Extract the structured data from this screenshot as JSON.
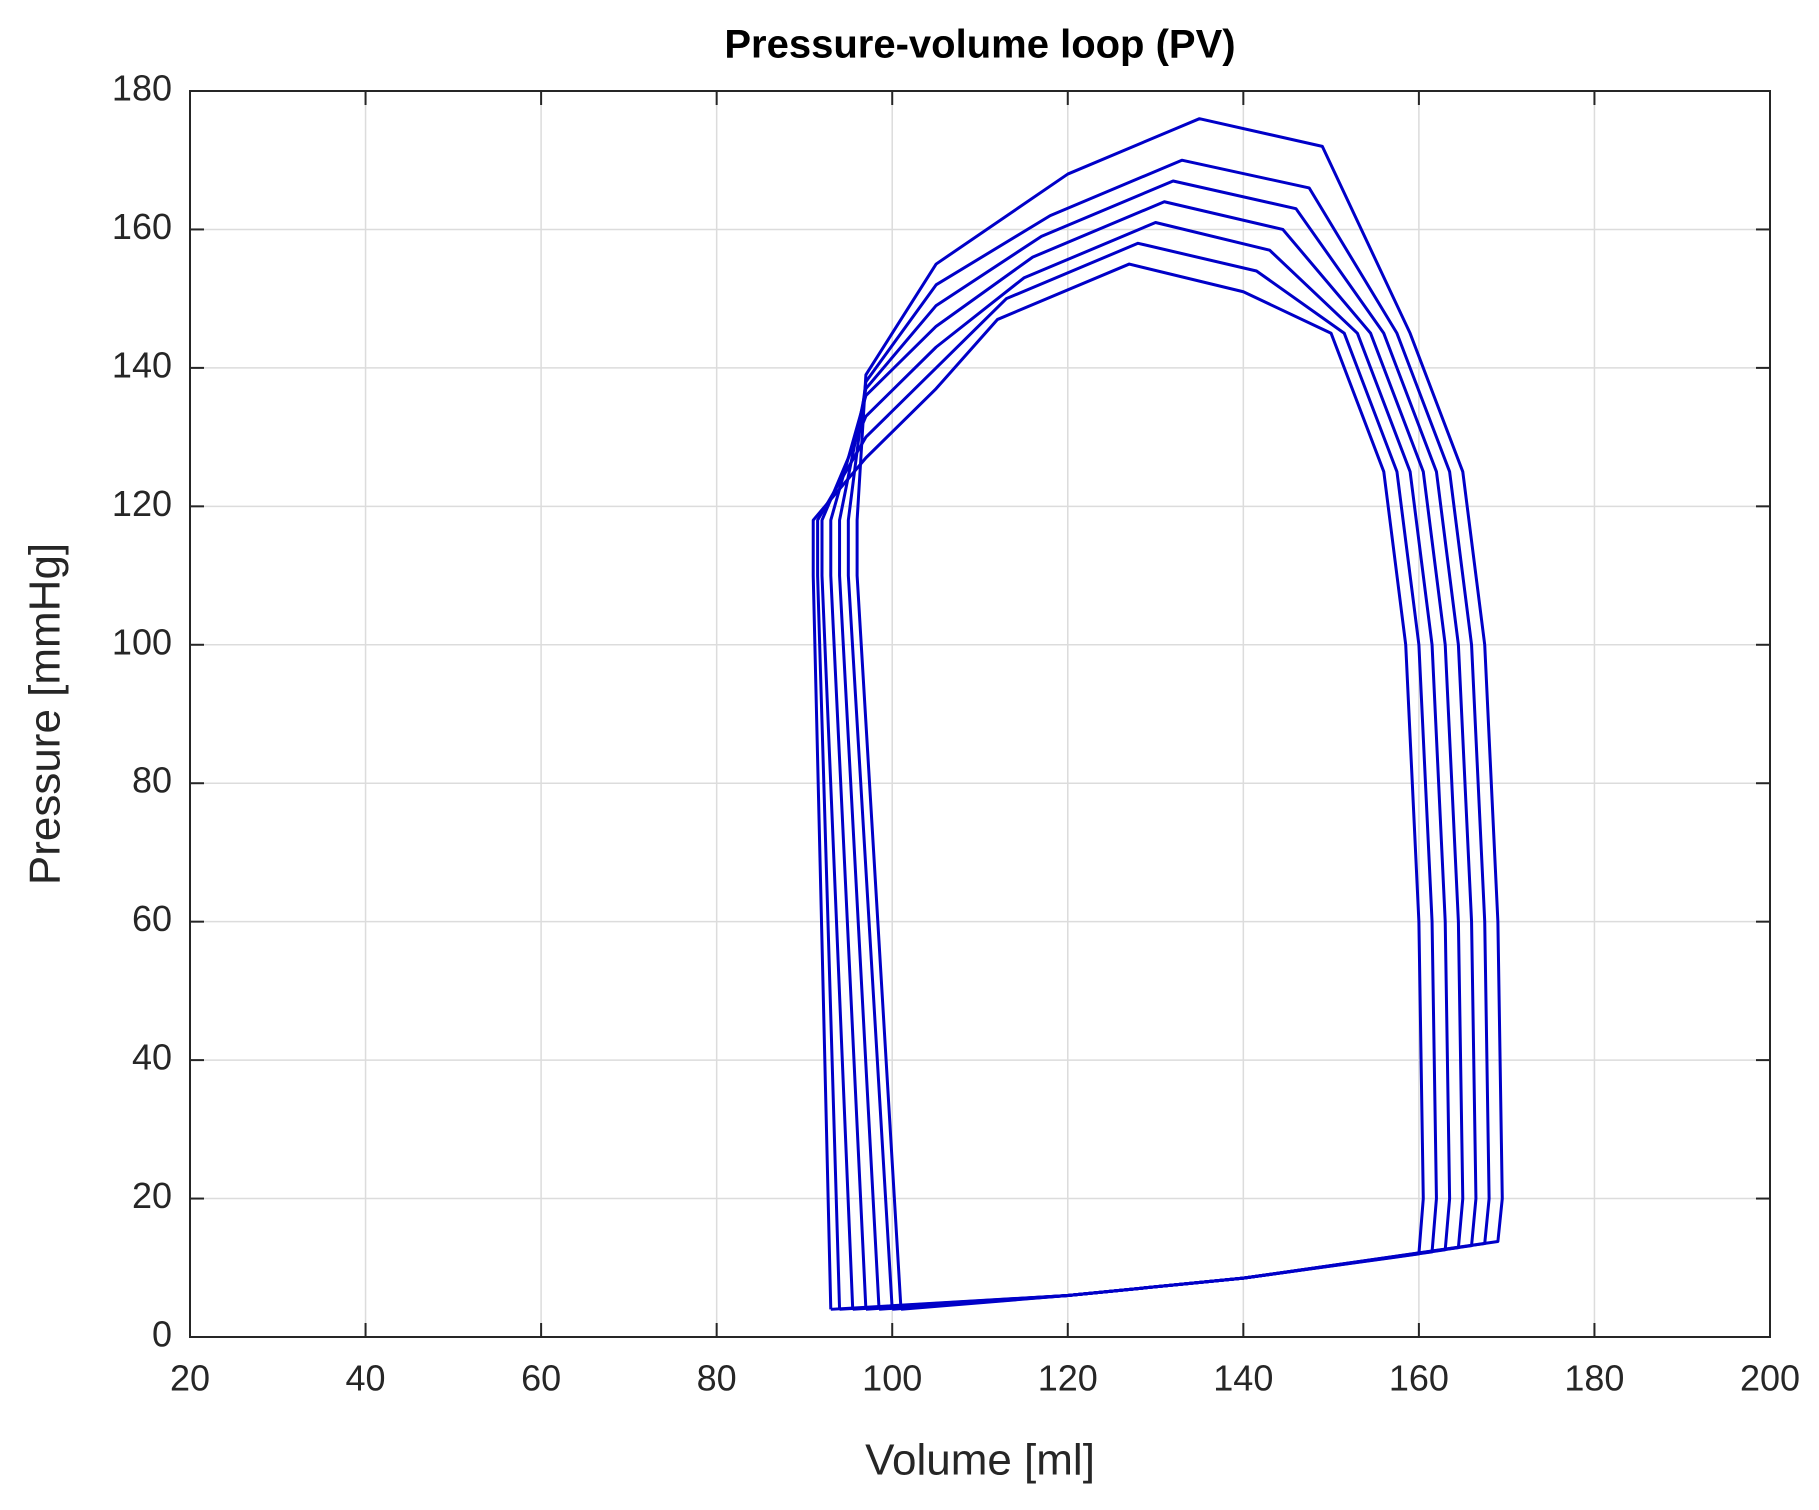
{
  "chart_data": {
    "type": "line",
    "title": "Pressure-volume loop (PV)",
    "x_label": "Volume [ml]",
    "y_label": "Pressure [mmHg]",
    "xlim": [
      20,
      200
    ],
    "ylim": [
      0,
      180
    ],
    "xticks": [
      20,
      40,
      60,
      80,
      100,
      120,
      140,
      160,
      180,
      200
    ],
    "yticks": [
      0,
      20,
      40,
      60,
      80,
      100,
      120,
      140,
      160,
      180
    ],
    "grid": true,
    "series": [
      {
        "color": "#0000c8",
        "x": [
          93,
          120,
          140,
          160,
          160.5,
          160,
          158.5,
          156,
          150,
          140,
          127,
          112,
          105,
          97,
          91,
          91,
          93
        ],
        "values": [
          4,
          6,
          8.5,
          12,
          20,
          60,
          100,
          125,
          145,
          151,
          155,
          147,
          137,
          127,
          118,
          110,
          4
        ]
      },
      {
        "color": "#0000c8",
        "x": [
          94,
          120,
          140,
          161.5,
          162,
          161.5,
          160,
          157.5,
          151.5,
          141.5,
          128,
          113,
          105,
          97,
          91.5,
          91.5,
          94
        ],
        "values": [
          4,
          6,
          8.5,
          12.3,
          20,
          60,
          100,
          125,
          145,
          154,
          158,
          150,
          140,
          130,
          118,
          110,
          4
        ]
      },
      {
        "color": "#0000c8",
        "x": [
          95.5,
          120,
          140,
          163,
          163.5,
          163,
          161.5,
          159,
          153,
          143,
          130,
          115,
          105,
          97,
          92,
          92,
          95.5
        ],
        "values": [
          4,
          6,
          8.5,
          12.6,
          20,
          60,
          100,
          125,
          145,
          157,
          161,
          153,
          143,
          133,
          118,
          110,
          4
        ]
      },
      {
        "color": "#0000c8",
        "x": [
          97,
          120,
          140,
          164.5,
          165,
          164.5,
          163,
          160.5,
          154.5,
          144.5,
          131,
          116,
          105,
          97,
          93,
          93,
          97
        ],
        "values": [
          4,
          6,
          8.5,
          12.9,
          20,
          60,
          100,
          125,
          145,
          160,
          164,
          156,
          146,
          136,
          118,
          110,
          4
        ]
      },
      {
        "color": "#0000c8",
        "x": [
          98.5,
          120,
          140,
          166,
          166.5,
          166,
          164.5,
          162,
          156,
          146,
          132,
          117,
          105,
          97,
          94,
          94,
          98.5
        ],
        "values": [
          4,
          6,
          8.5,
          13.2,
          20,
          60,
          100,
          125,
          145,
          163,
          167,
          159,
          149,
          137,
          118,
          110,
          4
        ]
      },
      {
        "color": "#0000c8",
        "x": [
          100,
          120,
          140,
          167.5,
          168,
          167.5,
          166,
          163.5,
          157.5,
          147.5,
          133,
          118,
          105,
          97,
          95,
          95,
          100
        ],
        "values": [
          4,
          6,
          8.5,
          13.5,
          20,
          60,
          100,
          125,
          145,
          166,
          170,
          162,
          152,
          138,
          118,
          110,
          4
        ]
      },
      {
        "color": "#0000c8",
        "x": [
          101,
          120,
          140,
          169,
          169.5,
          169,
          167.5,
          165,
          159,
          149,
          135,
          120,
          105,
          97,
          96,
          96,
          101
        ],
        "values": [
          4,
          6,
          8.5,
          13.8,
          20,
          60,
          100,
          125,
          145,
          172,
          176,
          168,
          155,
          139,
          118,
          110,
          4
        ]
      }
    ]
  }
}
